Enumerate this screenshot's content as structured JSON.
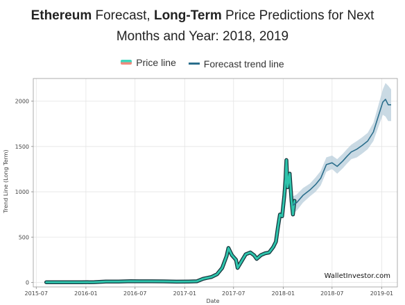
{
  "title": {
    "line1_parts": [
      {
        "text": "Ethereum",
        "bold": true
      },
      {
        "text": " Forecast, ",
        "bold": false
      },
      {
        "text": "Long-Term",
        "bold": true
      },
      {
        "text": " Price Predictions for Next",
        "bold": false
      }
    ],
    "line2": "Months and Year: 2018, 2019"
  },
  "legend": [
    {
      "label": "Price line",
      "color_top": "#3fd6be",
      "color_bottom": "#f08a7e"
    },
    {
      "label": "Forecast trend line",
      "color": "#2b6e8c"
    }
  ],
  "watermark": "WalletInvestor.com",
  "chart_data": {
    "type": "line",
    "xlabel": "Date",
    "ylabel": "Trend Line (Long Term)",
    "ylim": [
      -50,
      2250
    ],
    "xlim": [
      "2015-06-20",
      "2019-02-28"
    ],
    "yticks": [
      0,
      500,
      1000,
      1500,
      2000
    ],
    "xticks": [
      "2015-07",
      "2016-01",
      "2016-07",
      "2017-01",
      "2017-07",
      "2018-01",
      "2018-07",
      "2019-01"
    ],
    "grid": true,
    "colors": {
      "price": "#2ec4ac",
      "price_edge": "#14333a",
      "forecast": "#2b6e8c",
      "band": "#b8cedb"
    },
    "series": [
      {
        "name": "Price line",
        "x": [
          "2015-08-07",
          "2015-10-01",
          "2015-12-15",
          "2016-02-01",
          "2016-03-15",
          "2016-05-01",
          "2016-06-15",
          "2016-07-15",
          "2016-09-01",
          "2016-10-15",
          "2016-12-01",
          "2017-01-15",
          "2017-02-15",
          "2017-03-10",
          "2017-03-25",
          "2017-04-10",
          "2017-05-01",
          "2017-05-20",
          "2017-06-05",
          "2017-06-12",
          "2017-06-25",
          "2017-07-10",
          "2017-07-16",
          "2017-08-01",
          "2017-08-15",
          "2017-09-01",
          "2017-09-15",
          "2017-09-25",
          "2017-10-10",
          "2017-10-25",
          "2017-11-10",
          "2017-11-25",
          "2017-12-05",
          "2017-12-12",
          "2017-12-20",
          "2017-12-28",
          "2018-01-05",
          "2018-01-10",
          "2018-01-13",
          "2018-01-17",
          "2018-01-25",
          "2018-02-01",
          "2018-02-06",
          "2018-02-12"
        ],
        "values": [
          2,
          1,
          1,
          3,
          10,
          9,
          14,
          12,
          12,
          11,
          8,
          10,
          12,
          40,
          50,
          60,
          90,
          160,
          290,
          380,
          300,
          250,
          160,
          240,
          310,
          330,
          300,
          260,
          300,
          320,
          330,
          390,
          450,
          600,
          750,
          730,
          950,
          1150,
          1350,
          1050,
          1200,
          900,
          750,
          900
        ]
      },
      {
        "name": "Forecast trend line",
        "x": [
          "2018-02-05",
          "2018-02-20",
          "2018-03-15",
          "2018-04-10",
          "2018-05-01",
          "2018-05-20",
          "2018-06-10",
          "2018-07-01",
          "2018-07-20",
          "2018-08-10",
          "2018-08-25",
          "2018-09-10",
          "2018-10-01",
          "2018-10-20",
          "2018-11-10",
          "2018-12-01",
          "2018-12-20",
          "2019-01-05",
          "2019-01-15",
          "2019-01-25",
          "2019-02-05"
        ],
        "values": [
          850,
          880,
          960,
          1020,
          1080,
          1150,
          1300,
          1320,
          1280,
          1340,
          1390,
          1440,
          1470,
          1510,
          1560,
          1660,
          1840,
          1990,
          2020,
          1960,
          1960
        ],
        "band": [
          [
            760,
            950
          ],
          [
            790,
            970
          ],
          [
            880,
            1040
          ],
          [
            950,
            1090
          ],
          [
            1000,
            1160
          ],
          [
            1070,
            1230
          ],
          [
            1220,
            1380
          ],
          [
            1250,
            1400
          ],
          [
            1200,
            1360
          ],
          [
            1260,
            1420
          ],
          [
            1310,
            1470
          ],
          [
            1360,
            1520
          ],
          [
            1380,
            1560
          ],
          [
            1420,
            1600
          ],
          [
            1470,
            1650
          ],
          [
            1560,
            1760
          ],
          [
            1720,
            1960
          ],
          [
            1850,
            2130
          ],
          [
            1830,
            2200
          ],
          [
            1780,
            2170
          ],
          [
            1780,
            2130
          ]
        ]
      }
    ]
  }
}
